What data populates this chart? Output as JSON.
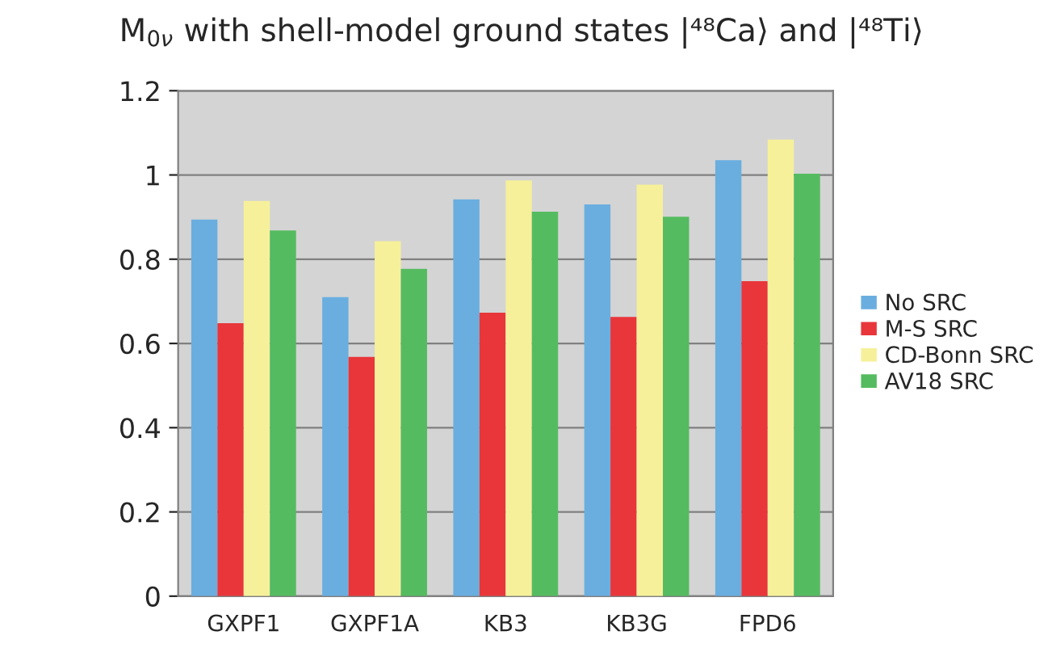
{
  "chart_data": {
    "type": "bar",
    "title": "M$_{0ν}$ with shell-model ground states |⁴⁸Ca⟩ and |⁴⁸Ti⟩",
    "categories": [
      "GXPF1",
      "GXPF1A",
      "KB3",
      "KB3G",
      "FPD6"
    ],
    "series": [
      {
        "name": "No SRC",
        "color": "#6aaee0",
        "values": [
          0.894,
          0.71,
          0.942,
          0.93,
          1.035
        ]
      },
      {
        "name": "M-S SRC",
        "color": "#e8363a",
        "values": [
          0.648,
          0.568,
          0.673,
          0.663,
          0.748
        ]
      },
      {
        "name": "CD-Bonn SRC",
        "color": "#f6f09a",
        "values": [
          0.938,
          0.843,
          0.987,
          0.977,
          1.084
        ]
      },
      {
        "name": "AV18 SRC",
        "color": "#55bb60",
        "values": [
          0.868,
          0.777,
          0.913,
          0.901,
          1.003
        ]
      }
    ],
    "ylim": [
      0,
      1.2
    ],
    "yticks": [
      0,
      {
        "value": 0.2,
        "label": "0.2"
      },
      {
        "value": 0.4,
        "label": "0.4"
      },
      {
        "value": 0.6,
        "label": "0.6"
      },
      {
        "value": 0.8,
        "label": "0.8"
      },
      1,
      {
        "value": 1.2,
        "label": "1.2"
      }
    ],
    "grid": "y",
    "legend": "right"
  }
}
